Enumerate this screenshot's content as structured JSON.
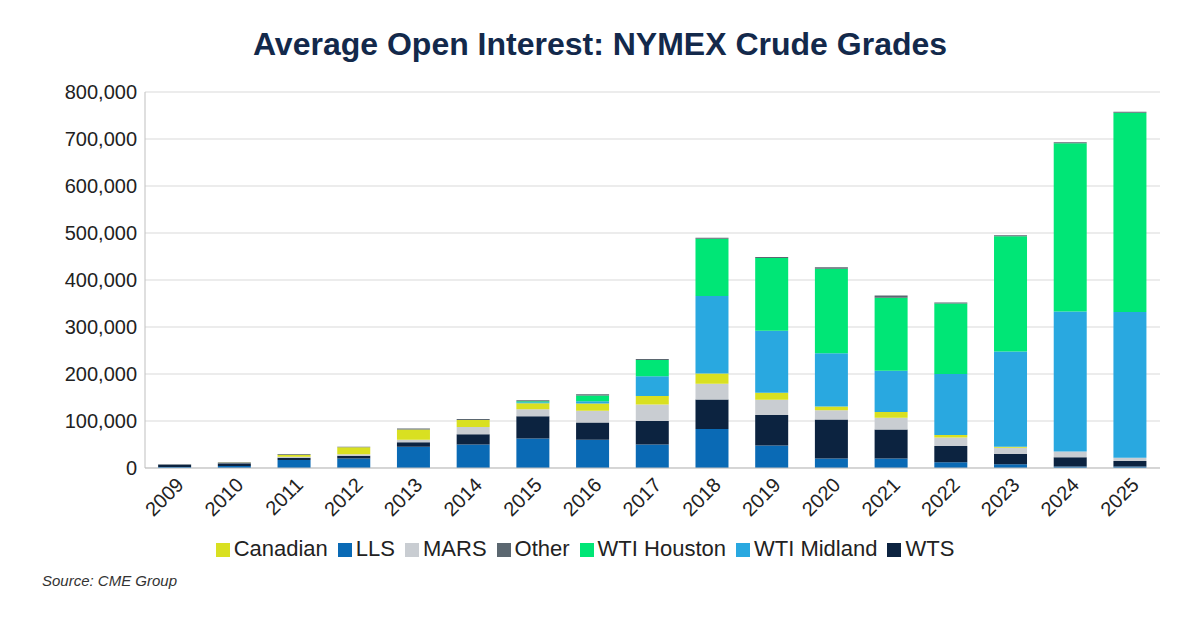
{
  "chart_data": {
    "type": "bar",
    "title": "Average Open Interest: NYMEX Crude Grades",
    "annotations": [
      "Source: CME Group"
    ],
    "stacked": true,
    "grid": true,
    "legend": "bottom",
    "categories": [
      "2009",
      "2010",
      "2011",
      "2012",
      "2013",
      "2014",
      "2015",
      "2016",
      "2017",
      "2018",
      "2019",
      "2020",
      "2021",
      "2022",
      "2023",
      "2024",
      "2025"
    ],
    "ylim": [
      0,
      800000
    ],
    "yticks": [
      0,
      {
        "value": 100000,
        "label": "100,000"
      },
      {
        "value": 200000,
        "label": "200,000"
      },
      {
        "value": 300000,
        "label": "300,000"
      },
      {
        "value": 400000,
        "label": "400,000"
      },
      {
        "value": 500000,
        "label": "500,000"
      },
      {
        "value": 600000,
        "label": "600,000"
      },
      {
        "value": 700000,
        "label": "700,000"
      },
      {
        "value": 800000,
        "label": "800,000"
      }
    ],
    "series": [
      {
        "name": "LLS",
        "color": "#0a6ab5",
        "values": [
          2000,
          4000,
          17000,
          20000,
          45000,
          50000,
          63000,
          60000,
          50000,
          83000,
          48000,
          20000,
          20000,
          12000,
          8000,
          3000,
          3000
        ]
      },
      {
        "name": "WTS",
        "color": "#0c2340",
        "values": [
          5000,
          6000,
          5000,
          6000,
          10000,
          22000,
          47000,
          37000,
          50000,
          63000,
          65000,
          83000,
          62000,
          35000,
          22000,
          20000,
          12000
        ]
      },
      {
        "name": "MARS",
        "color": "#c9cdd2",
        "values": [
          0,
          500,
          2000,
          3000,
          5000,
          15000,
          15000,
          25000,
          35000,
          33000,
          32000,
          20000,
          25000,
          18000,
          13000,
          12000,
          7000
        ]
      },
      {
        "name": "Canadian",
        "color": "#d9e021",
        "values": [
          0,
          500,
          4000,
          15000,
          22000,
          15000,
          13000,
          15000,
          18000,
          22000,
          15000,
          8000,
          12000,
          5000,
          2000,
          0,
          0
        ]
      },
      {
        "name": "WTI Midland",
        "color": "#29a8e0",
        "values": [
          0,
          0,
          0,
          0,
          0,
          0,
          2000,
          5000,
          42000,
          165000,
          132000,
          113000,
          88000,
          130000,
          203000,
          298000,
          310000
        ]
      },
      {
        "name": "WTI Houston",
        "color": "#00e676",
        "values": [
          0,
          0,
          0,
          0,
          0,
          0,
          2000,
          12000,
          35000,
          122000,
          155000,
          180000,
          155000,
          150000,
          245000,
          358000,
          424000
        ]
      },
      {
        "name": "Other",
        "color": "#5b6770",
        "values": [
          1000,
          1000,
          2000,
          1000,
          2000,
          2000,
          2000,
          3000,
          2000,
          2000,
          2000,
          3000,
          5000,
          2000,
          2000,
          2000,
          2000
        ]
      }
    ]
  }
}
